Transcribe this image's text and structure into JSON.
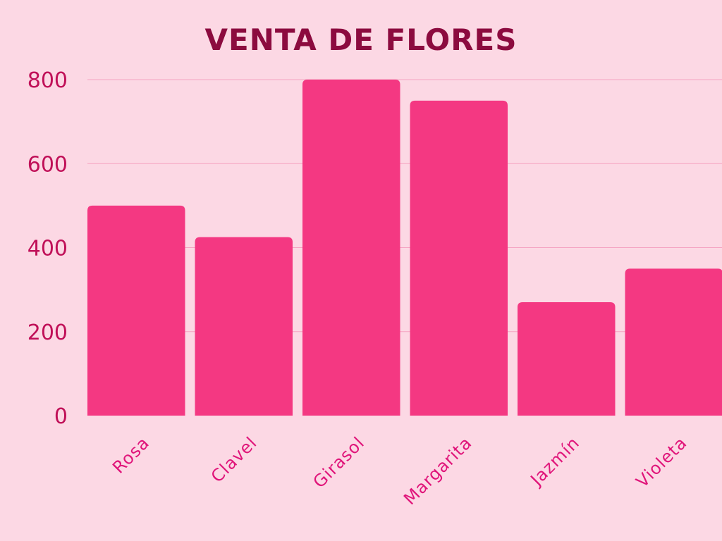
{
  "chart_data": {
    "type": "bar",
    "title": "VENTA DE FLORES",
    "categories": [
      "Rosa",
      "Clavel",
      "Girasol",
      "Margarita",
      "Jazmín",
      "Violeta"
    ],
    "values": [
      500,
      425,
      800,
      750,
      270,
      350
    ],
    "xlabel": "",
    "ylabel": "",
    "ylim": [
      0,
      800
    ],
    "yticks": [
      0,
      200,
      400,
      600,
      800
    ],
    "grid": true,
    "legend": "none"
  },
  "colors": {
    "background": "#fcd8e4",
    "bar": "#f43882",
    "title": "#8c0b3f",
    "tick_label": "#c01058",
    "category_label": "#e0157a",
    "grid": "#f5a3c2"
  }
}
